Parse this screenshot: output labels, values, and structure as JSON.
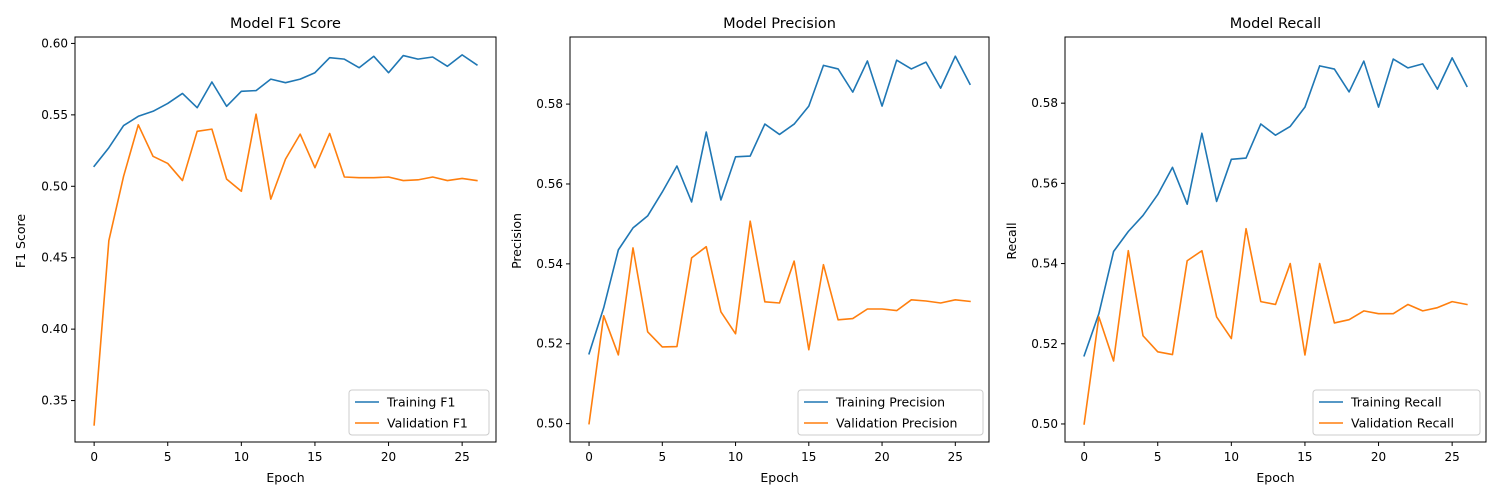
{
  "chart_data": [
    {
      "type": "line",
      "title": "Model F1 Score",
      "xlabel": "Epoch",
      "ylabel": "F1 Score",
      "xlim": [
        -1.3,
        27.3
      ],
      "ylim": [
        0.321,
        0.6045
      ],
      "xticks": [
        0,
        5,
        10,
        15,
        20,
        25
      ],
      "yticks": [
        0.35,
        0.4,
        0.45,
        0.5,
        0.55,
        0.6
      ],
      "ytick_labels": [
        "0.35",
        "0.40",
        "0.45",
        "0.50",
        "0.55",
        "0.60"
      ],
      "grid": false,
      "legend_position": "lower-right",
      "x": [
        0,
        1,
        2,
        3,
        4,
        5,
        6,
        7,
        8,
        9,
        10,
        11,
        12,
        13,
        14,
        15,
        16,
        17,
        18,
        19,
        20,
        21,
        22,
        23,
        24,
        25,
        26
      ],
      "series": [
        {
          "name": "Training F1",
          "color": "#1f77b4",
          "values": [
            0.514,
            0.527,
            0.5425,
            0.549,
            0.5525,
            0.558,
            0.565,
            0.555,
            0.573,
            0.556,
            0.5665,
            0.567,
            0.575,
            0.5725,
            0.575,
            0.5795,
            0.59,
            0.589,
            0.583,
            0.591,
            0.5795,
            0.5915,
            0.589,
            0.5905,
            0.584,
            0.592,
            0.585
          ]
        },
        {
          "name": "Validation F1",
          "color": "#ff7f0e",
          "values": [
            0.333,
            0.462,
            0.507,
            0.543,
            0.521,
            0.516,
            0.504,
            0.5385,
            0.54,
            0.505,
            0.4965,
            0.5505,
            0.491,
            0.519,
            0.5365,
            0.513,
            0.537,
            0.5065,
            0.506,
            0.506,
            0.5065,
            0.504,
            0.5045,
            0.5065,
            0.504,
            0.5055,
            0.504
          ]
        }
      ]
    },
    {
      "type": "line",
      "title": "Model Precision",
      "xlabel": "Epoch",
      "ylabel": "Precision",
      "xlim": [
        -1.3,
        27.3
      ],
      "ylim": [
        0.4954,
        0.5968
      ],
      "xticks": [
        0,
        5,
        10,
        15,
        20,
        25
      ],
      "yticks": [
        0.5,
        0.52,
        0.54,
        0.56,
        0.58
      ],
      "ytick_labels": [
        "0.50",
        "0.52",
        "0.54",
        "0.56",
        "0.58"
      ],
      "grid": false,
      "legend_position": "lower-right",
      "x": [
        0,
        1,
        2,
        3,
        4,
        5,
        6,
        7,
        8,
        9,
        10,
        11,
        12,
        13,
        14,
        15,
        16,
        17,
        18,
        19,
        20,
        21,
        22,
        23,
        24,
        25,
        26
      ],
      "series": [
        {
          "name": "Training Precision",
          "color": "#1f77b4",
          "values": [
            0.5175,
            0.529,
            0.5435,
            0.549,
            0.552,
            0.558,
            0.5645,
            0.5555,
            0.573,
            0.556,
            0.5668,
            0.567,
            0.575,
            0.5724,
            0.575,
            0.5795,
            0.5897,
            0.5888,
            0.583,
            0.5908,
            0.5795,
            0.591,
            0.5888,
            0.5905,
            0.584,
            0.592,
            0.585
          ]
        },
        {
          "name": "Validation Precision",
          "color": "#ff7f0e",
          "values": [
            0.5,
            0.527,
            0.5172,
            0.544,
            0.523,
            0.5192,
            0.5193,
            0.5415,
            0.5443,
            0.528,
            0.5225,
            0.5507,
            0.5305,
            0.5302,
            0.5407,
            0.5185,
            0.5398,
            0.526,
            0.5263,
            0.5287,
            0.5287,
            0.5283,
            0.531,
            0.5307,
            0.5302,
            0.531,
            0.5306
          ]
        }
      ]
    },
    {
      "type": "line",
      "title": "Model Recall",
      "xlabel": "Epoch",
      "ylabel": "Recall",
      "xlim": [
        -1.3,
        27.3
      ],
      "ylim": [
        0.4955,
        0.5965
      ],
      "xticks": [
        0,
        5,
        10,
        15,
        20,
        25
      ],
      "yticks": [
        0.5,
        0.52,
        0.54,
        0.56,
        0.58
      ],
      "ytick_labels": [
        "0.50",
        "0.52",
        "0.54",
        "0.56",
        "0.58"
      ],
      "grid": false,
      "legend_position": "lower-right",
      "x": [
        0,
        1,
        2,
        3,
        4,
        5,
        6,
        7,
        8,
        9,
        10,
        11,
        12,
        13,
        14,
        15,
        16,
        17,
        18,
        19,
        20,
        21,
        22,
        23,
        24,
        25,
        26
      ],
      "series": [
        {
          "name": "Training Recall",
          "color": "#1f77b4",
          "values": [
            0.517,
            0.5275,
            0.543,
            0.548,
            0.552,
            0.5572,
            0.564,
            0.5548,
            0.5725,
            0.5555,
            0.566,
            0.5663,
            0.5748,
            0.572,
            0.5742,
            0.579,
            0.5893,
            0.5885,
            0.5828,
            0.5905,
            0.579,
            0.591,
            0.5888,
            0.5898,
            0.5835,
            0.5913,
            0.5842
          ]
        },
        {
          "name": "Validation Recall",
          "color": "#ff7f0e",
          "values": [
            0.5,
            0.5267,
            0.5157,
            0.5432,
            0.522,
            0.518,
            0.5173,
            0.5407,
            0.5432,
            0.5267,
            0.5213,
            0.5487,
            0.5305,
            0.5298,
            0.54,
            0.5172,
            0.54,
            0.5252,
            0.526,
            0.5282,
            0.5275,
            0.5275,
            0.5298,
            0.5282,
            0.529,
            0.5305,
            0.5298
          ]
        }
      ]
    }
  ]
}
